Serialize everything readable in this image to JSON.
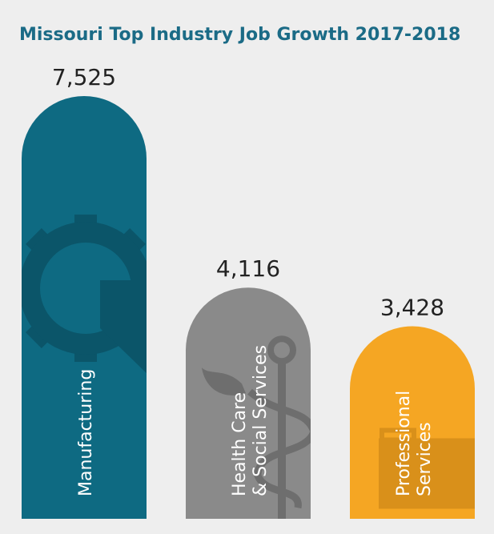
{
  "chart_data": {
    "type": "bar",
    "title": "Missouri Top Industry Job Growth 2017-2018",
    "xlabel": "",
    "ylabel": "",
    "categories": [
      [
        "Manufacturing"
      ],
      [
        "Health Care",
        "& Social Services"
      ],
      [
        "Professional",
        "Services"
      ]
    ],
    "values": [
      7525,
      4116,
      3428
    ],
    "value_labels": [
      "7,525",
      "4,116",
      "3,428"
    ],
    "icons": [
      "gear-icon",
      "caduceus-icon",
      "briefcase-icon"
    ],
    "colors": [
      "#0e6a82",
      "#8a8a8a",
      "#f5a623"
    ],
    "icon_colors": [
      "#0b5569",
      "#6e6e6e",
      "#d9901a"
    ],
    "title_color": "#1b6b86",
    "grid": false,
    "legend": "none"
  }
}
